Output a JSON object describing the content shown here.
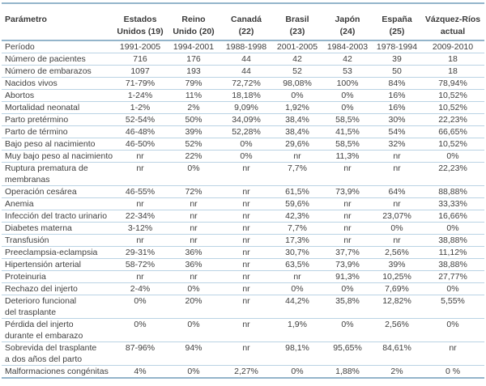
{
  "table": {
    "param_header": "Parámetro",
    "columns": [
      {
        "line1": "Estados",
        "line2": "Unidos (19)"
      },
      {
        "line1": "Reino",
        "line2": "Unido (20)"
      },
      {
        "line1": "Canadá",
        "line2": "(22)"
      },
      {
        "line1": "Brasil",
        "line2": "(23)"
      },
      {
        "line1": "Japón",
        "line2": "(24)"
      },
      {
        "line1": "España",
        "line2": "(25)"
      },
      {
        "line1": "Vázquez-Ríos",
        "line2": "actual"
      }
    ],
    "rows": [
      {
        "label": "Período",
        "values": [
          "1991-2005",
          "1994-2001",
          "1988-1998",
          "2001-2005",
          "1984-2003",
          "1978-1994",
          "2009-2010"
        ]
      },
      {
        "label": "Número de pacientes",
        "values": [
          "716",
          "176",
          "44",
          "42",
          "42",
          "39",
          "18"
        ]
      },
      {
        "label": "Número de embarazos",
        "values": [
          "1097",
          "193",
          "44",
          "52",
          "53",
          "50",
          "18"
        ]
      },
      {
        "label": "Nacidos vivos",
        "values": [
          "71-79%",
          "79%",
          "72,72%",
          "98,08%",
          "100%",
          "84%",
          "78,94%"
        ]
      },
      {
        "label": "Abortos",
        "values": [
          "1-24%",
          "11%",
          "18,18%",
          "0%",
          "0%",
          "16%",
          "10,52%"
        ]
      },
      {
        "label": "Mortalidad neonatal",
        "values": [
          "1-2%",
          "2%",
          "9,09%",
          "1,92%",
          "0%",
          "16%",
          "10,52%"
        ]
      },
      {
        "label": "Parto pretérmino",
        "values": [
          "52-54%",
          "50%",
          "34,09%",
          "38,4%",
          "58,5%",
          "30%",
          "22,23%"
        ]
      },
      {
        "label": "Parto de término",
        "values": [
          "46-48%",
          "39%",
          "52,28%",
          "38,4%",
          "41,5%",
          "54%",
          "66,65%"
        ]
      },
      {
        "label": "Bajo peso al nacimiento",
        "values": [
          "46-50%",
          "52%",
          "0%",
          "29,6%",
          "58,5%",
          "32%",
          "10,52%"
        ]
      },
      {
        "label": "Muy bajo peso al nacimiento",
        "values": [
          "nr",
          "22%",
          "0%",
          "nr",
          "11,3%",
          "nr",
          "0%"
        ]
      },
      {
        "label": "Ruptura prematura de\nmembranas",
        "values": [
          "nr",
          "0%",
          "nr",
          "7,7%",
          "nr",
          "nr",
          "22,23%"
        ]
      },
      {
        "label": "Operación cesárea",
        "values": [
          "46-55%",
          "72%",
          "nr",
          "61,5%",
          "73,9%",
          "64%",
          "88,88%"
        ]
      },
      {
        "label": "Anemia",
        "values": [
          "nr",
          "nr",
          "nr",
          "59,6%",
          "nr",
          "nr",
          "33,33%"
        ]
      },
      {
        "label": "Infección del tracto urinario",
        "values": [
          "22-34%",
          "nr",
          "nr",
          "42,3%",
          "nr",
          "23,07%",
          "16,66%"
        ]
      },
      {
        "label": "Diabetes materna",
        "values": [
          "3-12%",
          "nr",
          "nr",
          "7,7%",
          "nr",
          "0%",
          "0%"
        ]
      },
      {
        "label": "Transfusión",
        "values": [
          "nr",
          "nr",
          "nr",
          "17,3%",
          "nr",
          "nr",
          "38,88%"
        ]
      },
      {
        "label": "Preeclampsia-eclampsia",
        "values": [
          "29-31%",
          "36%",
          "nr",
          "30,7%",
          "37,7%",
          "2,56%",
          "11,12%"
        ]
      },
      {
        "label": "Hipertensión arterial",
        "values": [
          "58-72%",
          "36%",
          "nr",
          "63,5%",
          "73,9%",
          "39%",
          "38,88%"
        ]
      },
      {
        "label": "Proteinuria",
        "values": [
          "nr",
          "nr",
          "nr",
          "nr",
          "91,3%",
          "10,25%",
          "27,77%"
        ]
      },
      {
        "label": "Rechazo del injerto",
        "values": [
          "2-4%",
          "0%",
          "nr",
          "0%",
          "0%",
          "7,69%",
          "0%"
        ]
      },
      {
        "label": "Deterioro funcional\ndel trasplante",
        "values": [
          "0%",
          "20%",
          "nr",
          "44,2%",
          "35,8%",
          "12,82%",
          "5,55%"
        ]
      },
      {
        "label": "Pérdida del injerto\ndurante el embarazo",
        "values": [
          "0%",
          "0%",
          "nr",
          "1,9%",
          "0%",
          "2,56%",
          "0%"
        ]
      },
      {
        "label": "Sobrevida del trasplante\na dos años del parto",
        "values": [
          "87-96%",
          "94%",
          "nr",
          "98,1%",
          "95,65%",
          "84,61%",
          "nr"
        ]
      },
      {
        "label": "Malformaciones congénitas",
        "values": [
          "4%",
          "0%",
          "2,27%",
          "0%",
          "1,88%",
          "2%",
          "0 %"
        ]
      }
    ]
  },
  "colors": {
    "rule_thick": "#94b5cb",
    "rule_thin": "#bad3e4",
    "text": "#3f3f3f"
  }
}
